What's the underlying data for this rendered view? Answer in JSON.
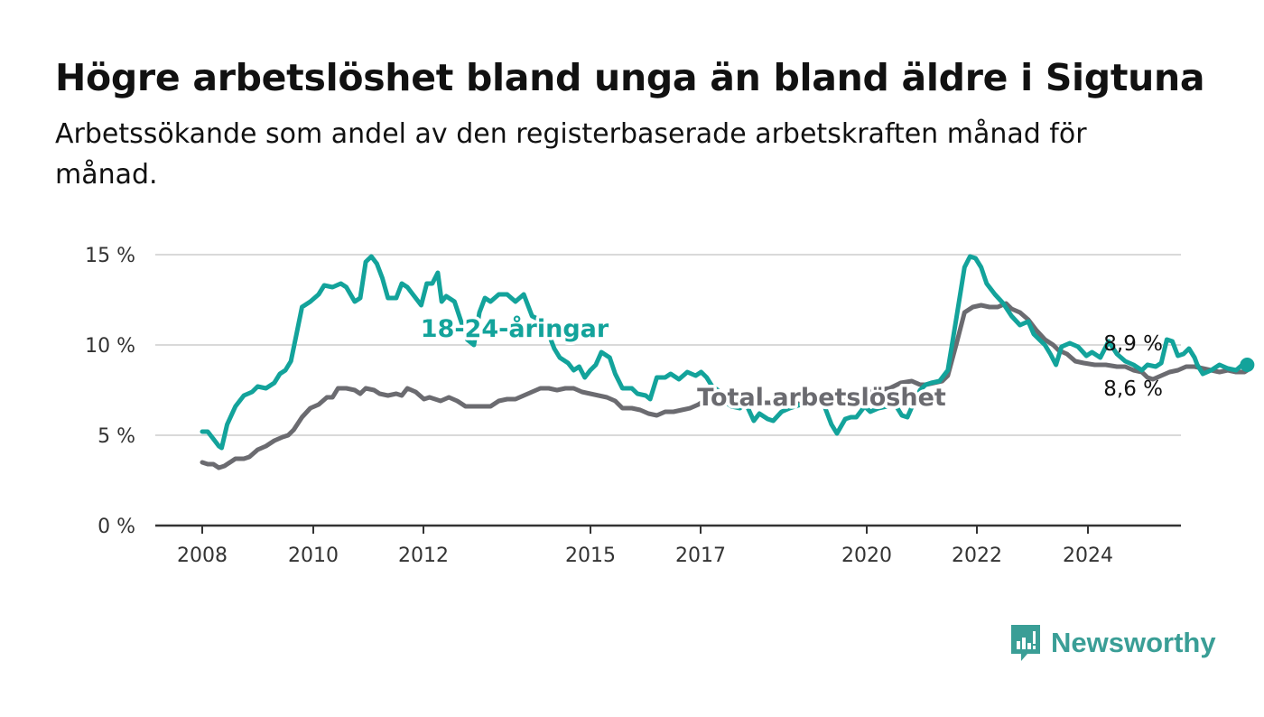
{
  "title": "Högre arbetslöshet bland unga än bland äldre i Sigtuna",
  "subtitle": "Arbetssökande som andel av den registerbaserade arbetskraften månad för månad.",
  "brand": {
    "name": "Newsworthy",
    "icon": "newsworthy-logo-icon",
    "color": "#3a9e96"
  },
  "chart_data": {
    "type": "line",
    "title": "Högre arbetslöshet bland unga än bland äldre i Sigtuna",
    "subtitle": "Arbetssökande som andel av den registerbaserade arbetskraften månad för månad.",
    "x_unit": "year",
    "x_ticks": [
      2008,
      2010,
      2012,
      2015,
      2017,
      2020,
      2022,
      2024
    ],
    "x_tick_labels": [
      "2008",
      "2010",
      "2012",
      "2015",
      "2017",
      "2020",
      "2022",
      "2024"
    ],
    "xlim": [
      2007.2,
      2025.9
    ],
    "ylim": [
      0,
      15
    ],
    "y_ticks": [
      0,
      5,
      10,
      15
    ],
    "y_tick_labels": [
      "0 %",
      "5 %",
      "10 %",
      "15 %"
    ],
    "grid": true,
    "legend": "inline",
    "series": [
      {
        "name": "18-24-åringar",
        "color": "#13a39b",
        "end_label": "8,9 %",
        "points": [
          [
            2008.0,
            5.2
          ],
          [
            2008.1,
            5.2
          ],
          [
            2008.2,
            4.8
          ],
          [
            2008.3,
            4.4
          ],
          [
            2008.35,
            4.3
          ],
          [
            2008.45,
            5.6
          ],
          [
            2008.6,
            6.6
          ],
          [
            2008.75,
            7.2
          ],
          [
            2008.9,
            7.4
          ],
          [
            2009.0,
            7.7
          ],
          [
            2009.15,
            7.6
          ],
          [
            2009.3,
            7.9
          ],
          [
            2009.4,
            8.4
          ],
          [
            2009.5,
            8.6
          ],
          [
            2009.6,
            9.1
          ],
          [
            2009.7,
            10.6
          ],
          [
            2009.8,
            12.1
          ],
          [
            2009.95,
            12.4
          ],
          [
            2010.1,
            12.8
          ],
          [
            2010.2,
            13.3
          ],
          [
            2010.35,
            13.2
          ],
          [
            2010.5,
            13.4
          ],
          [
            2010.6,
            13.2
          ],
          [
            2010.75,
            12.4
          ],
          [
            2010.85,
            12.6
          ],
          [
            2010.95,
            14.6
          ],
          [
            2011.05,
            14.9
          ],
          [
            2011.15,
            14.5
          ],
          [
            2011.25,
            13.7
          ],
          [
            2011.35,
            12.6
          ],
          [
            2011.5,
            12.6
          ],
          [
            2011.6,
            13.4
          ],
          [
            2011.7,
            13.2
          ],
          [
            2011.8,
            12.8
          ],
          [
            2011.95,
            12.2
          ],
          [
            2012.05,
            13.4
          ],
          [
            2012.15,
            13.4
          ],
          [
            2012.25,
            14.0
          ],
          [
            2012.32,
            12.4
          ],
          [
            2012.4,
            12.7
          ],
          [
            2012.55,
            12.4
          ],
          [
            2012.68,
            11.2
          ],
          [
            2012.78,
            10.3
          ],
          [
            2012.9,
            10.0
          ],
          [
            2013.0,
            11.8
          ],
          [
            2013.1,
            12.6
          ],
          [
            2013.2,
            12.4
          ],
          [
            2013.35,
            12.8
          ],
          [
            2013.5,
            12.8
          ],
          [
            2013.65,
            12.4
          ],
          [
            2013.8,
            12.8
          ],
          [
            2013.95,
            11.6
          ],
          [
            2014.08,
            11.4
          ],
          [
            2014.2,
            11.0
          ],
          [
            2014.35,
            9.8
          ],
          [
            2014.45,
            9.3
          ],
          [
            2014.6,
            9.0
          ],
          [
            2014.7,
            8.6
          ],
          [
            2014.8,
            8.8
          ],
          [
            2014.9,
            8.2
          ],
          [
            2015.0,
            8.6
          ],
          [
            2015.1,
            8.9
          ],
          [
            2015.2,
            9.6
          ],
          [
            2015.35,
            9.3
          ],
          [
            2015.45,
            8.4
          ],
          [
            2015.58,
            7.6
          ],
          [
            2015.75,
            7.6
          ],
          [
            2015.85,
            7.3
          ],
          [
            2016.0,
            7.2
          ],
          [
            2016.08,
            7.0
          ],
          [
            2016.2,
            8.2
          ],
          [
            2016.35,
            8.2
          ],
          [
            2016.45,
            8.4
          ],
          [
            2016.6,
            8.1
          ],
          [
            2016.75,
            8.5
          ],
          [
            2016.9,
            8.3
          ],
          [
            2017.0,
            8.5
          ],
          [
            2017.1,
            8.2
          ],
          [
            2017.2,
            7.7
          ],
          [
            2017.3,
            7.5
          ],
          [
            2017.4,
            6.9
          ],
          [
            2017.55,
            6.6
          ],
          [
            2017.7,
            6.5
          ],
          [
            2017.8,
            6.8
          ],
          [
            2017.95,
            5.8
          ],
          [
            2018.05,
            6.2
          ],
          [
            2018.2,
            5.9
          ],
          [
            2018.3,
            5.8
          ],
          [
            2018.45,
            6.3
          ],
          [
            2018.6,
            6.5
          ],
          [
            2018.8,
            6.7
          ],
          [
            2019.0,
            6.9
          ],
          [
            2019.2,
            6.8
          ],
          [
            2019.35,
            5.6
          ],
          [
            2019.45,
            5.1
          ],
          [
            2019.6,
            5.9
          ],
          [
            2019.7,
            6.0
          ],
          [
            2019.8,
            6.0
          ],
          [
            2019.95,
            6.6
          ],
          [
            2020.05,
            6.3
          ],
          [
            2020.2,
            6.5
          ],
          [
            2020.35,
            6.6
          ],
          [
            2020.5,
            6.7
          ],
          [
            2020.62,
            6.1
          ],
          [
            2020.72,
            6.0
          ],
          [
            2020.85,
            6.9
          ],
          [
            2020.95,
            7.5
          ],
          [
            2021.05,
            7.8
          ],
          [
            2021.15,
            7.9
          ],
          [
            2021.3,
            8.0
          ],
          [
            2021.45,
            8.6
          ],
          [
            2021.6,
            11.4
          ],
          [
            2021.75,
            14.3
          ],
          [
            2021.85,
            14.9
          ],
          [
            2021.95,
            14.8
          ],
          [
            2022.05,
            14.3
          ],
          [
            2022.15,
            13.4
          ],
          [
            2022.3,
            12.8
          ],
          [
            2022.45,
            12.3
          ],
          [
            2022.6,
            11.6
          ],
          [
            2022.75,
            11.1
          ],
          [
            2022.9,
            11.3
          ],
          [
            2023.0,
            10.6
          ],
          [
            2023.1,
            10.3
          ],
          [
            2023.2,
            10.0
          ],
          [
            2023.3,
            9.5
          ],
          [
            2023.4,
            8.9
          ],
          [
            2023.5,
            9.9
          ],
          [
            2023.65,
            10.1
          ],
          [
            2023.8,
            9.9
          ],
          [
            2023.95,
            9.4
          ],
          [
            2024.05,
            9.6
          ],
          [
            2024.2,
            9.3
          ],
          [
            2024.35,
            10.2
          ],
          [
            2024.5,
            9.5
          ],
          [
            2024.65,
            9.1
          ],
          [
            2024.8,
            8.9
          ],
          [
            2024.95,
            8.6
          ],
          [
            2025.05,
            8.9
          ],
          [
            2025.2,
            8.8
          ],
          [
            2025.3,
            9.0
          ],
          [
            2025.4,
            10.3
          ],
          [
            2025.5,
            10.2
          ],
          [
            2025.6,
            9.4
          ],
          [
            2025.7,
            9.5
          ],
          [
            2025.8,
            9.8
          ],
          [
            2025.9,
            9.3
          ],
          [
            2025.95,
            8.9
          ],
          [
            2026.05,
            8.4
          ],
          [
            2026.2,
            8.6
          ],
          [
            2026.35,
            8.9
          ],
          [
            2026.5,
            8.7
          ],
          [
            2026.65,
            8.6
          ],
          [
            2026.8,
            9.0
          ],
          [
            2026.85,
            8.9
          ]
        ]
      },
      {
        "name": "Total arbetslöshet",
        "color": "#6b6b70",
        "end_label": "8,6 %",
        "points": [
          [
            2008.0,
            3.5
          ],
          [
            2008.1,
            3.4
          ],
          [
            2008.2,
            3.4
          ],
          [
            2008.3,
            3.2
          ],
          [
            2008.4,
            3.3
          ],
          [
            2008.5,
            3.5
          ],
          [
            2008.6,
            3.7
          ],
          [
            2008.75,
            3.7
          ],
          [
            2008.85,
            3.8
          ],
          [
            2009.0,
            4.2
          ],
          [
            2009.15,
            4.4
          ],
          [
            2009.3,
            4.7
          ],
          [
            2009.45,
            4.9
          ],
          [
            2009.55,
            5.0
          ],
          [
            2009.65,
            5.3
          ],
          [
            2009.8,
            6.0
          ],
          [
            2009.95,
            6.5
          ],
          [
            2010.1,
            6.7
          ],
          [
            2010.25,
            7.1
          ],
          [
            2010.35,
            7.1
          ],
          [
            2010.45,
            7.6
          ],
          [
            2010.6,
            7.6
          ],
          [
            2010.75,
            7.5
          ],
          [
            2010.85,
            7.3
          ],
          [
            2010.95,
            7.6
          ],
          [
            2011.1,
            7.5
          ],
          [
            2011.2,
            7.3
          ],
          [
            2011.35,
            7.2
          ],
          [
            2011.5,
            7.3
          ],
          [
            2011.6,
            7.2
          ],
          [
            2011.7,
            7.6
          ],
          [
            2011.85,
            7.4
          ],
          [
            2012.0,
            7.0
          ],
          [
            2012.1,
            7.1
          ],
          [
            2012.2,
            7.0
          ],
          [
            2012.3,
            6.9
          ],
          [
            2012.45,
            7.1
          ],
          [
            2012.6,
            6.9
          ],
          [
            2012.75,
            6.6
          ],
          [
            2012.9,
            6.6
          ],
          [
            2013.05,
            6.6
          ],
          [
            2013.2,
            6.6
          ],
          [
            2013.35,
            6.9
          ],
          [
            2013.5,
            7.0
          ],
          [
            2013.65,
            7.0
          ],
          [
            2013.8,
            7.2
          ],
          [
            2013.95,
            7.4
          ],
          [
            2014.1,
            7.6
          ],
          [
            2014.25,
            7.6
          ],
          [
            2014.4,
            7.5
          ],
          [
            2014.55,
            7.6
          ],
          [
            2014.7,
            7.6
          ],
          [
            2014.85,
            7.4
          ],
          [
            2015.0,
            7.3
          ],
          [
            2015.15,
            7.2
          ],
          [
            2015.3,
            7.1
          ],
          [
            2015.45,
            6.9
          ],
          [
            2015.58,
            6.5
          ],
          [
            2015.75,
            6.5
          ],
          [
            2015.9,
            6.4
          ],
          [
            2016.05,
            6.2
          ],
          [
            2016.2,
            6.1
          ],
          [
            2016.35,
            6.3
          ],
          [
            2016.5,
            6.3
          ],
          [
            2016.65,
            6.4
          ],
          [
            2016.8,
            6.5
          ],
          [
            2016.95,
            6.7
          ],
          [
            2017.05,
            6.9
          ],
          [
            2017.2,
            7.0
          ],
          [
            2017.35,
            7.0
          ],
          [
            2017.5,
            7.0
          ],
          [
            2017.65,
            6.9
          ],
          [
            2017.8,
            6.8
          ],
          [
            2017.95,
            6.6
          ],
          [
            2018.1,
            6.8
          ],
          [
            2018.25,
            6.8
          ],
          [
            2018.4,
            6.9
          ],
          [
            2018.6,
            6.9
          ],
          [
            2018.8,
            6.7
          ],
          [
            2019.0,
            6.9
          ],
          [
            2019.2,
            7.0
          ],
          [
            2019.4,
            7.0
          ],
          [
            2019.6,
            7.0
          ],
          [
            2019.8,
            7.2
          ],
          [
            2020.0,
            7.4
          ],
          [
            2020.2,
            7.5
          ],
          [
            2020.4,
            7.6
          ],
          [
            2020.6,
            7.9
          ],
          [
            2020.8,
            8.0
          ],
          [
            2020.95,
            7.8
          ],
          [
            2021.05,
            7.8
          ],
          [
            2021.2,
            7.9
          ],
          [
            2021.35,
            8.0
          ],
          [
            2021.45,
            8.3
          ],
          [
            2021.6,
            10.0
          ],
          [
            2021.75,
            11.8
          ],
          [
            2021.9,
            12.1
          ],
          [
            2022.05,
            12.2
          ],
          [
            2022.2,
            12.1
          ],
          [
            2022.35,
            12.1
          ],
          [
            2022.5,
            12.3
          ],
          [
            2022.6,
            12.0
          ],
          [
            2022.75,
            11.8
          ],
          [
            2022.9,
            11.4
          ],
          [
            2023.05,
            10.8
          ],
          [
            2023.2,
            10.3
          ],
          [
            2023.35,
            10.0
          ],
          [
            2023.45,
            9.7
          ],
          [
            2023.6,
            9.5
          ],
          [
            2023.75,
            9.1
          ],
          [
            2023.9,
            9.0
          ],
          [
            2024.1,
            8.9
          ],
          [
            2024.3,
            8.9
          ],
          [
            2024.5,
            8.8
          ],
          [
            2024.65,
            8.8
          ],
          [
            2024.8,
            8.6
          ],
          [
            2024.95,
            8.5
          ],
          [
            2025.05,
            8.2
          ],
          [
            2025.15,
            8.1
          ],
          [
            2025.3,
            8.3
          ],
          [
            2025.45,
            8.5
          ],
          [
            2025.6,
            8.6
          ],
          [
            2025.75,
            8.8
          ],
          [
            2025.9,
            8.8
          ],
          [
            2026.05,
            8.7
          ],
          [
            2026.2,
            8.6
          ],
          [
            2026.35,
            8.5
          ],
          [
            2026.5,
            8.6
          ],
          [
            2026.65,
            8.5
          ],
          [
            2026.8,
            8.5
          ],
          [
            2026.85,
            8.6
          ]
        ]
      }
    ]
  }
}
